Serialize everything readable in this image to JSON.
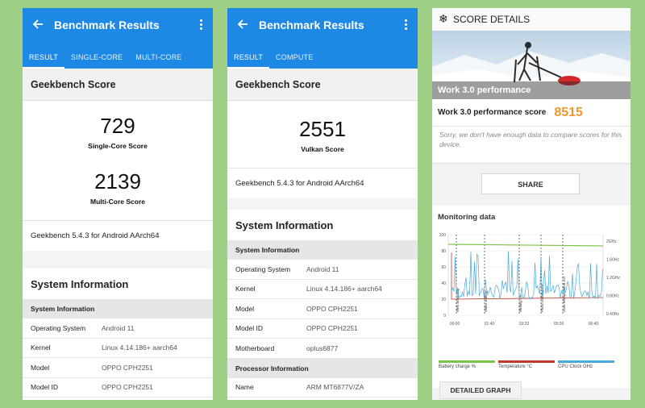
{
  "left": {
    "app_title": "Benchmark Results",
    "tabs": [
      "RESULT",
      "SINGLE-CORE",
      "MULTI-CORE"
    ],
    "section_title": "Geekbench Score",
    "single_score": "729",
    "single_label": "Single-Core Score",
    "multi_score": "2139",
    "multi_label": "Multi-Core Score",
    "version": "Geekbench 5.4.3 for Android AArch64",
    "sysinfo_title": "System Information",
    "sysinfo_sub": "System Information",
    "rows": [
      {
        "k": "Operating System",
        "v": "Android 11"
      },
      {
        "k": "Kernel",
        "v": "Linux 4.14.186+ aarch64"
      },
      {
        "k": "Model",
        "v": "OPPO CPH2251"
      },
      {
        "k": "Model ID",
        "v": "OPPO CPH2251"
      }
    ]
  },
  "middle": {
    "app_title": "Benchmark Results",
    "tabs": [
      "RESULT",
      "COMPUTE"
    ],
    "section_title": "Geekbench Score",
    "vulkan_score": "2551",
    "vulkan_label": "Vulkan Score",
    "version": "Geekbench 5.4.3 for Android AArch64",
    "sysinfo_title": "System Information",
    "sysinfo_sub": "System Information",
    "rows": [
      {
        "k": "Operating System",
        "v": "Android 11"
      },
      {
        "k": "Kernel",
        "v": "Linux 4.14.186+ aarch64"
      },
      {
        "k": "Model",
        "v": "OPPO CPH2251"
      },
      {
        "k": "Model ID",
        "v": "OPPO CPH2251"
      },
      {
        "k": "Motherboard",
        "v": "oplus6877"
      }
    ],
    "processor_sub": "Processor Information",
    "proc_rows": [
      {
        "k": "Name",
        "v": "ARM MT6877V/ZA"
      }
    ]
  },
  "right": {
    "header_title": "SCORE DETAILS",
    "hero_label": "Work 3.0 performance",
    "score_label": "Work 3.0 performance score",
    "score_value": "8515",
    "sorry_text": "Sorry, we don't have enough data to compare scores for this device.",
    "share_label": "SHARE",
    "monitoring_title": "Monitoring data",
    "chart_left_ticks": [
      "100",
      "80",
      "60",
      "40",
      "20",
      "0"
    ],
    "chart_right_ticks": [
      "2GHz",
      "1.60Hz",
      "1.2GHz",
      "0.80Hz",
      "0.40Hz"
    ],
    "chart_x_ticks": [
      "00:00",
      "01:40",
      "03:20",
      "05:00",
      "06:40"
    ],
    "chart_phase_labels": [
      "Web Browsing",
      "Video Editing",
      "Writing 3.0",
      "Photo Editing 3.0",
      "Data Manipulation 3.0"
    ],
    "legend": [
      {
        "label": "Battery charge %",
        "color": "#7cc44a"
      },
      {
        "label": "Temperature °C",
        "color": "#c0392b"
      },
      {
        "label": "CPU Clock GHz",
        "color": "#4aa8d8"
      }
    ],
    "detail_label": "DETAILED GRAPH"
  },
  "colors": {
    "appbar": "#1e88e5",
    "score_orange": "#f0962d",
    "background": "#9fcf84"
  }
}
